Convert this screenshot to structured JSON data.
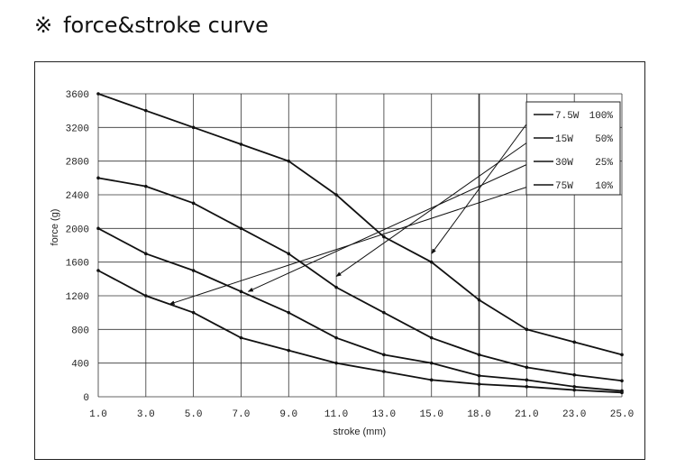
{
  "header": {
    "mark": "※",
    "title": "force&stroke curve"
  },
  "chart_data": {
    "type": "line",
    "title": "force&stroke curve",
    "xlabel": "stroke (mm)",
    "ylabel": "force (g)",
    "x_ticks": [
      "1.0",
      "3.0",
      "5.0",
      "7.0",
      "9.0",
      "11.0",
      "13.0",
      "15.0",
      "18.0",
      "21.0",
      "23.0",
      "25.0"
    ],
    "x": [
      1,
      3,
      5,
      7,
      9,
      11,
      13,
      15,
      18,
      21,
      23,
      25
    ],
    "ylim": [
      0,
      3600
    ],
    "y_ticks": [
      0,
      400,
      800,
      1200,
      1600,
      2000,
      2400,
      2800,
      3200,
      3600
    ],
    "grid": true,
    "legend_position": "top-right",
    "series": [
      {
        "name": "7.5W 100%",
        "legend_label": "7.5W",
        "legend_pct": "100%",
        "values": [
          3600,
          3400,
          3200,
          3000,
          2800,
          2400,
          1900,
          1600,
          1150,
          800,
          650,
          500
        ]
      },
      {
        "name": "15W 50%",
        "legend_label": "15W",
        "legend_pct": "50%",
        "values": [
          2600,
          2500,
          2300,
          2000,
          1700,
          1300,
          1000,
          700,
          500,
          350,
          260,
          190
        ]
      },
      {
        "name": "30W 25%",
        "legend_label": "30W",
        "legend_pct": "25%",
        "values": [
          2000,
          1700,
          1500,
          1250,
          1000,
          700,
          500,
          400,
          250,
          200,
          120,
          70
        ]
      },
      {
        "name": "75W 10%",
        "legend_label": "75W",
        "legend_pct": "10%",
        "values": [
          1500,
          1200,
          1000,
          700,
          550,
          400,
          300,
          200,
          150,
          120,
          80,
          50
        ]
      }
    ],
    "annotation_targets": [
      {
        "series": "75W 10%",
        "x": 4,
        "y": 1100
      },
      {
        "series": "30W 25%",
        "x": 7.3,
        "y": 1250
      },
      {
        "series": "15W 50%",
        "x": 11,
        "y": 1430
      },
      {
        "series": "7.5W 100%",
        "x": 15,
        "y": 1700
      }
    ]
  }
}
